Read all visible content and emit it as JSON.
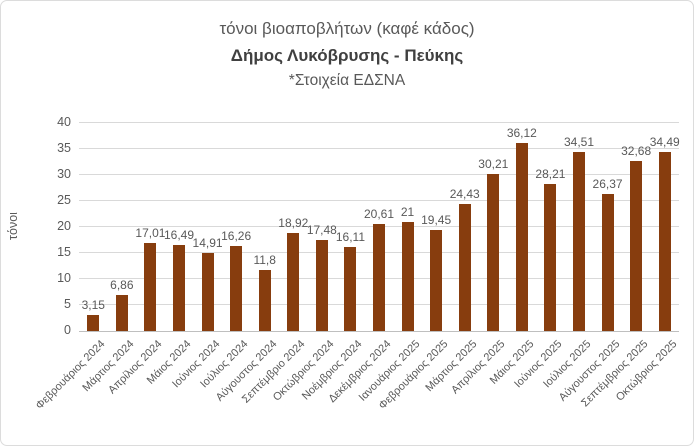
{
  "title": {
    "line1": "τόνοι βιοαποβλήτων (καφέ κάδος)",
    "line2": "Δήμος Λυκόβρυσης - Πεύκης",
    "line3": "*Στοιχεία ΕΔΣΝΑ"
  },
  "chart_data": {
    "type": "bar",
    "title": "τόνοι βιοαποβλήτων (καφέ κάδος) — Δήμος Λυκόβρυσης - Πεύκης — *Στοιχεία ΕΔΣΝΑ",
    "xlabel": "",
    "ylabel": "τόνοι",
    "ylim": [
      0,
      40
    ],
    "ytick_step": 5,
    "yticks": [
      0,
      5,
      10,
      15,
      20,
      25,
      30,
      35,
      40
    ],
    "grid": true,
    "legend": "none",
    "bar_color": "#873D0E",
    "gridline_color": "#d9d9d9",
    "label_color": "#595959",
    "categories": [
      "Φεβρουάριος 2024",
      "Μάρτιος 2024",
      "Απρίλιος 2024",
      "Μάιος 2024",
      "Ιούνιος 2024",
      "Ιούλιος 2024",
      "Αύγουστος 2024",
      "Σεπτέμβριο 2024",
      "Οκτώβριος 2024",
      "Νοέμβριος 2024",
      "Δεκέμβριος 2024",
      "Ιανουάριος 2025",
      "Φεβρουάριος 2025",
      "Μάρτιος 2025",
      "Απρίλιος 2025",
      "Μάιος 2025",
      "Ιούνιος 2025",
      "Ιούλιος 2025",
      "Αύγουστος 2025",
      "Σεπτέμβριος 2025",
      "Οκτώβριος 2025"
    ],
    "values": [
      3.15,
      6.86,
      17.01,
      16.49,
      14.91,
      16.26,
      11.8,
      18.92,
      17.48,
      16.11,
      20.61,
      21,
      19.45,
      24.43,
      30.21,
      36.12,
      28.21,
      34.51,
      26.37,
      32.68,
      34.49
    ],
    "value_labels": [
      "3,15",
      "6,86",
      "17,01",
      "16,49",
      "14,91",
      "16,26",
      "11,8",
      "18,92",
      "17,48",
      "16,11",
      "20,61",
      "21",
      "19,45",
      "24,43",
      "30,21",
      "36,12",
      "28,21",
      "34,51",
      "26,37",
      "32,68",
      "34,49"
    ]
  }
}
